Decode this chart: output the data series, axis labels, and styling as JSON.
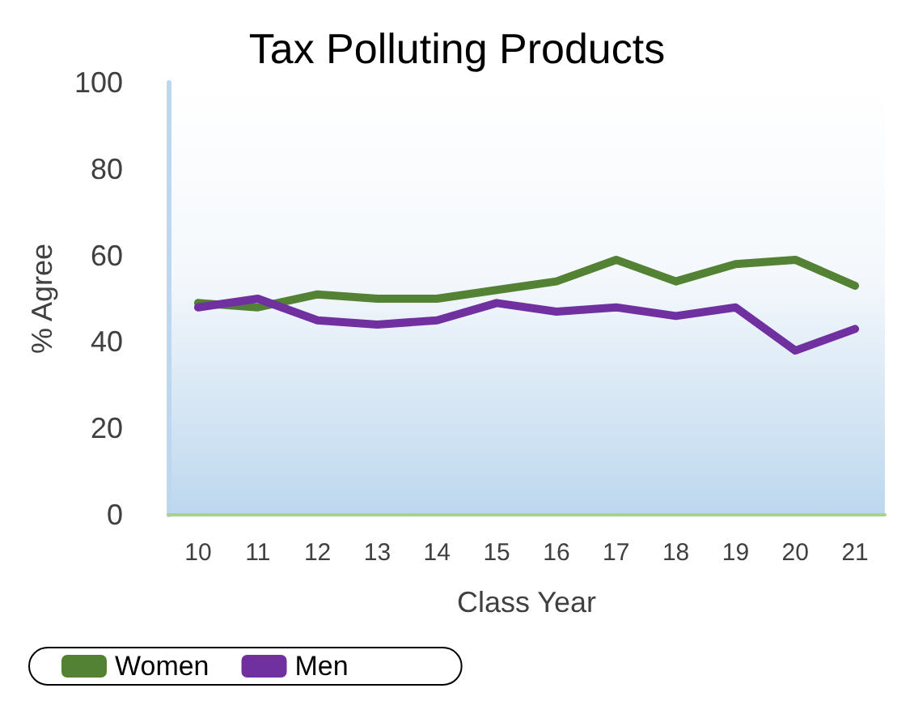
{
  "chart_data": {
    "type": "line",
    "title": "Tax Polluting Products",
    "xlabel": "Class Year",
    "ylabel": "% Agree",
    "categories": [
      "10",
      "11",
      "12",
      "13",
      "14",
      "15",
      "16",
      "17",
      "18",
      "19",
      "20",
      "21"
    ],
    "series": [
      {
        "name": "Women",
        "color": "#548235",
        "values": [
          49,
          48,
          51,
          50,
          50,
          52,
          54,
          59,
          54,
          58,
          59,
          53
        ]
      },
      {
        "name": "Men",
        "color": "#7030a0",
        "values": [
          48,
          50,
          45,
          44,
          45,
          49,
          47,
          48,
          46,
          48,
          38,
          43
        ]
      }
    ],
    "ylim": [
      0,
      100
    ],
    "yticks": [
      0,
      20,
      40,
      60,
      80,
      100
    ],
    "grid": false,
    "legend": "bottom left",
    "marker": "none",
    "line_style": "solid"
  }
}
